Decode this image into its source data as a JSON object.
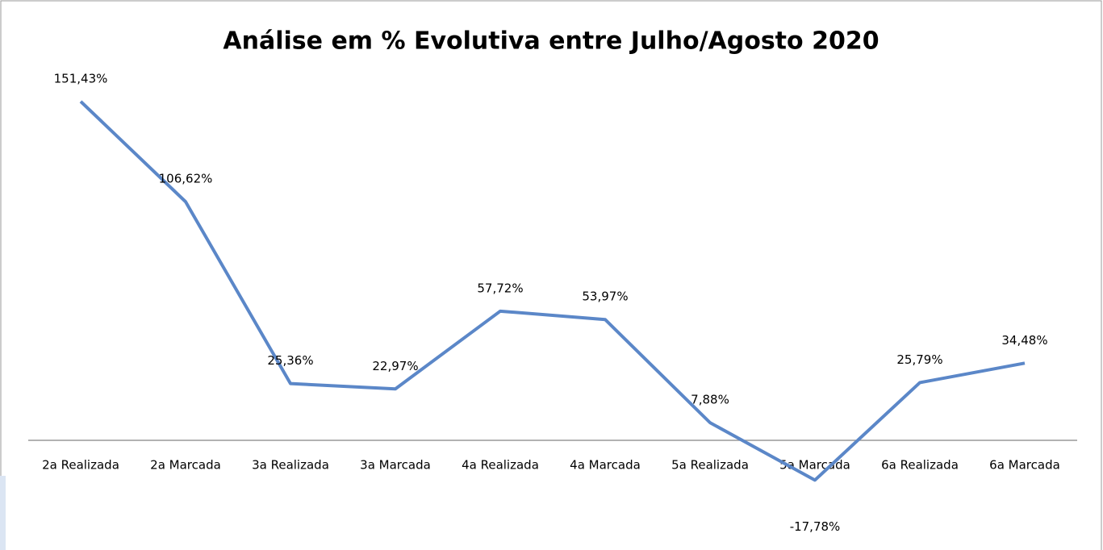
{
  "chart_data": {
    "type": "line",
    "title": "Análise em % Evolutiva entre Julho/Agosto 2020",
    "categories": [
      "2a Realizada",
      "2a Marcada",
      "3a Realizada",
      "3a Marcada",
      "4a Realizada",
      "4a Marcada",
      "5a Realizada",
      "5a Marcada",
      "6a Realizada",
      "6a Marcada"
    ],
    "values": [
      151.43,
      106.62,
      25.36,
      22.97,
      57.72,
      53.97,
      7.88,
      -17.78,
      25.79,
      34.48
    ],
    "value_labels": [
      "151,43%",
      "106,62%",
      "25,36%",
      "22,97%",
      "57,72%",
      "53,97%",
      "7,88%",
      "-17,78%",
      "25,79%",
      "34,48%"
    ],
    "color": "#5b87c8",
    "ylim": [
      -40,
      160
    ]
  }
}
